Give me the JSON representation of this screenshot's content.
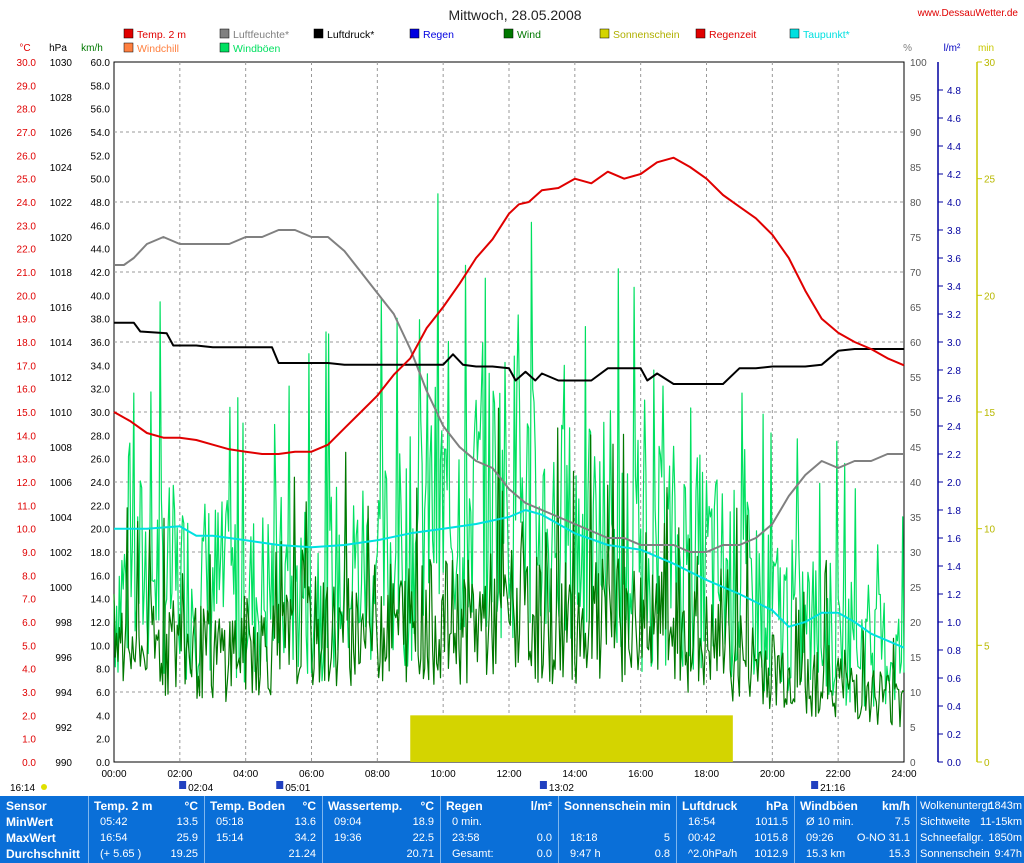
{
  "header": {
    "title": "Mittwoch, 28.05.2008",
    "site": "www.DessauWetter.de"
  },
  "legend": [
    {
      "label": "Temp. 2 m",
      "color": "#e00000"
    },
    {
      "label": "Luftfeuchte*",
      "color": "#808080"
    },
    {
      "label": "Luftdruck*",
      "color": "#000000"
    },
    {
      "label": "Regen",
      "color": "#0000e0"
    },
    {
      "label": "Wind",
      "color": "#007800"
    },
    {
      "label": "Sonnenschein",
      "color": "#d4d400"
    },
    {
      "label": "Regenzeit",
      "color": "#e00000"
    },
    {
      "label": "Taupunkt*",
      "color": "#00e0e0"
    },
    {
      "label": "Windchill",
      "color": "#ff8040"
    },
    {
      "label": "Windböen",
      "color": "#00e060"
    }
  ],
  "axis_units": {
    "temp": "°C",
    "press": "hPa",
    "wind": "km/h",
    "hum": "%",
    "rain": "l/m²",
    "sun": "min"
  },
  "chart_data": {
    "type": "line",
    "x_ticks": [
      "00:00",
      "02:00",
      "04:00",
      "06:00",
      "08:00",
      "10:00",
      "12:00",
      "14:00",
      "16:00",
      "18:00",
      "20:00",
      "22:00",
      "24:00"
    ],
    "axes": {
      "temp_ticks": [
        "30.0",
        "29.0",
        "28.0",
        "27.0",
        "26.0",
        "25.0",
        "24.0",
        "23.0",
        "22.0",
        "21.0",
        "20.0",
        "19.0",
        "18.0",
        "17.0",
        "16.0",
        "15.0",
        "14.0",
        "13.0",
        "12.0",
        "11.0",
        "10.0",
        "9.0",
        "8.0",
        "7.0",
        "6.0",
        "5.0",
        "4.0",
        "3.0",
        "2.0",
        "1.0",
        "0.0"
      ],
      "press_ticks": [
        "1030",
        "1028",
        "1026",
        "1024",
        "1022",
        "1020",
        "1018",
        "1016",
        "1014",
        "1012",
        "1010",
        "1008",
        "1006",
        "1004",
        "1002",
        "1000",
        "998",
        "996",
        "994",
        "992",
        "990"
      ],
      "wind_ticks": [
        "60.0",
        "58.0",
        "56.0",
        "54.0",
        "52.0",
        "50.0",
        "48.0",
        "46.0",
        "44.0",
        "42.0",
        "40.0",
        "38.0",
        "36.0",
        "34.0",
        "32.0",
        "30.0",
        "28.0",
        "26.0",
        "24.0",
        "22.0",
        "20.0",
        "18.0",
        "16.0",
        "14.0",
        "12.0",
        "10.0",
        "8.0",
        "6.0",
        "4.0",
        "2.0",
        "0.0"
      ],
      "hum_ticks": [
        "100",
        "95",
        "90",
        "85",
        "80",
        "75",
        "70",
        "65",
        "60",
        "55",
        "50",
        "45",
        "40",
        "35",
        "30",
        "25",
        "20",
        "15",
        "10",
        "5",
        "0"
      ],
      "rain_ticks": [
        "4.8",
        "4.6",
        "4.4",
        "4.2",
        "4.0",
        "3.8",
        "3.6",
        "3.4",
        "3.2",
        "3.0",
        "2.8",
        "2.6",
        "2.4",
        "2.2",
        "2.0",
        "1.8",
        "1.6",
        "1.4",
        "1.2",
        "1.0",
        "0.8",
        "0.6",
        "0.4",
        "0.2",
        "0.0"
      ],
      "sun_ticks": [
        "30",
        "25",
        "20",
        "15",
        "10",
        "5",
        "0"
      ]
    },
    "series": [
      {
        "name": "Temp. 2 m",
        "axis": "temp",
        "color": "#e00000",
        "x": [
          0,
          0.5,
          1,
          1.5,
          2,
          2.5,
          3,
          3.5,
          4,
          4.5,
          5,
          5.5,
          6,
          6.5,
          7,
          7.5,
          8,
          8.5,
          9,
          9.5,
          10,
          10.5,
          11,
          11.5,
          12,
          12.3,
          12.6,
          13,
          13.5,
          14,
          14.5,
          15,
          15.5,
          16,
          16.5,
          17,
          17.5,
          18,
          18.5,
          19,
          19.5,
          20,
          20.5,
          21,
          21.5,
          22,
          22.5,
          23,
          23.5,
          24
        ],
        "y": [
          15.0,
          14.6,
          14.1,
          13.9,
          13.9,
          13.8,
          13.6,
          13.4,
          13.3,
          13.2,
          13.2,
          13.3,
          13.3,
          13.6,
          14.3,
          15.0,
          15.7,
          16.6,
          17.3,
          18.6,
          19.5,
          20.5,
          21.6,
          22.4,
          23.5,
          23.9,
          24.0,
          24.5,
          24.6,
          25.0,
          24.8,
          25.3,
          25.0,
          25.2,
          25.7,
          25.9,
          25.5,
          25.0,
          24.3,
          23.8,
          23.3,
          22.6,
          21.6,
          20.2,
          19.0,
          18.4,
          18.0,
          17.7,
          17.3,
          17.0
        ]
      },
      {
        "name": "Luftfeuchte*",
        "axis": "hum",
        "color": "#808080",
        "x": [
          0,
          0.3,
          0.6,
          1,
          1.5,
          2,
          2.5,
          3,
          3.5,
          4,
          4.5,
          5,
          5.5,
          6,
          6.5,
          7,
          7.5,
          8,
          8.5,
          9,
          9.5,
          10,
          10.5,
          11,
          11.5,
          12,
          12.5,
          13,
          13.5,
          14,
          14.5,
          15,
          15.5,
          16,
          16.5,
          17,
          17.5,
          18,
          18.5,
          19,
          19.5,
          20,
          20.5,
          21,
          21.5,
          22,
          22.5,
          23,
          23.5,
          24
        ],
        "y": [
          71,
          71,
          72,
          74,
          75,
          74,
          74,
          74,
          74,
          75,
          75,
          76,
          76,
          75,
          75,
          73,
          70,
          67,
          64,
          59,
          53,
          48,
          45,
          43,
          42,
          39,
          37,
          36,
          35,
          34,
          33,
          32,
          32,
          31,
          31,
          31,
          30,
          30,
          31,
          31,
          32,
          34,
          38,
          41,
          43,
          42,
          43,
          43,
          44,
          44
        ]
      },
      {
        "name": "Luftdruck*",
        "axis": "press",
        "color": "#000000",
        "x": [
          0,
          0.6,
          0.8,
          1.6,
          1.8,
          2.5,
          3,
          3.5,
          4,
          4.5,
          4.8,
          5,
          5.5,
          6,
          6.5,
          7,
          7.5,
          8,
          8.5,
          9,
          9.5,
          10,
          10.3,
          10.6,
          11,
          11.5,
          12,
          12.2,
          12.5,
          12.8,
          13,
          13.5,
          14,
          14.5,
          15,
          15.5,
          16,
          16.2,
          16.5,
          17,
          17.5,
          18,
          18.5,
          19,
          19.5,
          20,
          20.5,
          21,
          21.5,
          22,
          22.5,
          23,
          23.5,
          24
        ],
        "y": [
          1015.1,
          1015.1,
          1014.6,
          1014.5,
          1013.8,
          1013.8,
          1013.7,
          1013.7,
          1013.7,
          1013.7,
          1013.7,
          1012.8,
          1012.8,
          1012.8,
          1012.8,
          1012.7,
          1012.7,
          1012.7,
          1012.7,
          1012.7,
          1012.7,
          1012.7,
          1013.3,
          1012.7,
          1012.6,
          1012.6,
          1012.5,
          1011.8,
          1012.3,
          1011.8,
          1012.2,
          1011.8,
          1011.8,
          1011.8,
          1012.5,
          1012.5,
          1012.5,
          1011.8,
          1012.2,
          1011.6,
          1011.6,
          1011.6,
          1011.6,
          1012.5,
          1012.5,
          1012.6,
          1012.6,
          1012.6,
          1012.7,
          1013.5,
          1013.6,
          1013.6,
          1013.6,
          1013.6
        ]
      },
      {
        "name": "Taupunkt*",
        "axis": "temp",
        "color": "#00e0e0",
        "x": [
          0,
          1,
          2,
          2.5,
          3,
          4,
          5,
          6,
          7,
          8,
          9,
          10,
          11,
          12,
          12.5,
          13,
          13.5,
          14,
          15,
          16,
          17,
          18,
          19,
          20,
          20.5,
          21,
          21.5,
          22,
          22.5,
          23,
          23.5,
          24
        ],
        "y": [
          10.0,
          10.0,
          10.1,
          9.7,
          9.7,
          9.5,
          9.3,
          9.2,
          9.3,
          9.5,
          9.8,
          10.0,
          10.2,
          10.5,
          10.8,
          10.6,
          10.2,
          9.8,
          9.3,
          9.1,
          8.5,
          7.8,
          7.2,
          6.5,
          5.8,
          6.0,
          6.4,
          6.4,
          6.0,
          5.5,
          5.2,
          4.9
        ]
      },
      {
        "name": "Windböen",
        "axis": "wind",
        "color": "#00e060",
        "style": "noisy",
        "x": [
          0,
          1,
          2,
          3,
          4,
          5,
          6,
          7,
          8,
          9,
          9.5,
          10,
          11,
          12,
          13,
          14,
          15,
          16,
          17,
          18,
          19,
          20,
          21,
          22,
          23,
          24
        ],
        "y": [
          14,
          17,
          15,
          15,
          14,
          15,
          15,
          16,
          17,
          18,
          22,
          21,
          22,
          24,
          20,
          19,
          18,
          17,
          18,
          17,
          15,
          13,
          12,
          11,
          10,
          9
        ]
      },
      {
        "name": "Wind",
        "axis": "wind",
        "color": "#007800",
        "style": "noisy",
        "x": [
          0,
          1,
          2,
          3,
          4,
          5,
          6,
          7,
          8,
          9,
          10,
          11,
          12,
          13,
          14,
          15,
          16,
          17,
          18,
          19,
          20,
          21,
          22,
          23,
          24
        ],
        "y": [
          10,
          10,
          10,
          9,
          10,
          10,
          11,
          11,
          12,
          12,
          12,
          12,
          13,
          12,
          12,
          12,
          12,
          11,
          10,
          9,
          8,
          7,
          7,
          6,
          5
        ]
      },
      {
        "name": "Sonnenschein",
        "axis": "sun",
        "color": "#d4d400",
        "style": "bar",
        "x": [
          9.0,
          18.8
        ],
        "y": [
          2.0,
          2.0
        ]
      }
    ],
    "ylim_temp": [
      0,
      30
    ],
    "ylim_press": [
      990,
      1030
    ],
    "ylim_wind": [
      0,
      60
    ],
    "ylim_hum": [
      0,
      100
    ],
    "ylim_rain": [
      0,
      5
    ],
    "ylim_sun": [
      0,
      30
    ],
    "grid": true
  },
  "below_axis": {
    "left_time": "16:14",
    "markers": [
      {
        "label": "02:04",
        "x": 2.07
      },
      {
        "label": "05:01",
        "x": 5.02
      },
      {
        "label": "13:02",
        "x": 13.03
      },
      {
        "label": "21:16",
        "x": 21.27
      }
    ]
  },
  "stats": {
    "sensor_header": "Sensor",
    "row_labels": [
      "MinWert",
      "MaxWert",
      "Durchschnitt"
    ],
    "temp2m": {
      "title": "Temp. 2 m",
      "unit": "°C",
      "rows": [
        [
          "05:42",
          "13.5"
        ],
        [
          "16:54",
          "25.9"
        ],
        [
          "(+ 5.65 )",
          "19.25"
        ]
      ]
    },
    "boden": {
      "title": "Temp. Boden",
      "unit": "°C",
      "rows": [
        [
          "05:18",
          "13.6"
        ],
        [
          "15:14",
          "34.2"
        ],
        [
          "",
          "21.24"
        ]
      ]
    },
    "wasser": {
      "title": "Wassertemp.",
      "unit": "°C",
      "rows": [
        [
          "09:04",
          "18.9"
        ],
        [
          "19:36",
          "22.5"
        ],
        [
          "",
          "20.71"
        ]
      ]
    },
    "regen": {
      "title": "Regen",
      "unit": "l/m²",
      "rows": [
        [
          "0 min.",
          ""
        ],
        [
          "23:58",
          "0.0"
        ],
        [
          "Gesamt:",
          "0.0"
        ]
      ]
    },
    "sonne": {
      "title": "Sonnenschein min",
      "unit": "",
      "rows": [
        [
          "",
          ""
        ],
        [
          "18:18",
          "5"
        ],
        [
          "9:47 h",
          "0.8"
        ]
      ]
    },
    "druck": {
      "title": "Luftdruck",
      "unit": "hPa",
      "rows": [
        [
          "16:54",
          "1011.5"
        ],
        [
          "00:42",
          "1015.8"
        ],
        [
          "^2.0hPa/h",
          "1012.9"
        ]
      ]
    },
    "boeen": {
      "title": "Windböen",
      "unit": "km/h",
      "rows": [
        [
          "Ø 10 min.",
          "7.5"
        ],
        [
          "09:26",
          "O-NO 31.1"
        ],
        [
          "15.3 km",
          "15.3"
        ]
      ]
    },
    "extra": [
      [
        "Wolkenuntergr.",
        "1843m"
      ],
      [
        "Sichtweite",
        "11-15km"
      ],
      [
        "Schneefallgr.",
        "1850m"
      ],
      [
        "Sonnenschein",
        "9:47h"
      ]
    ]
  }
}
